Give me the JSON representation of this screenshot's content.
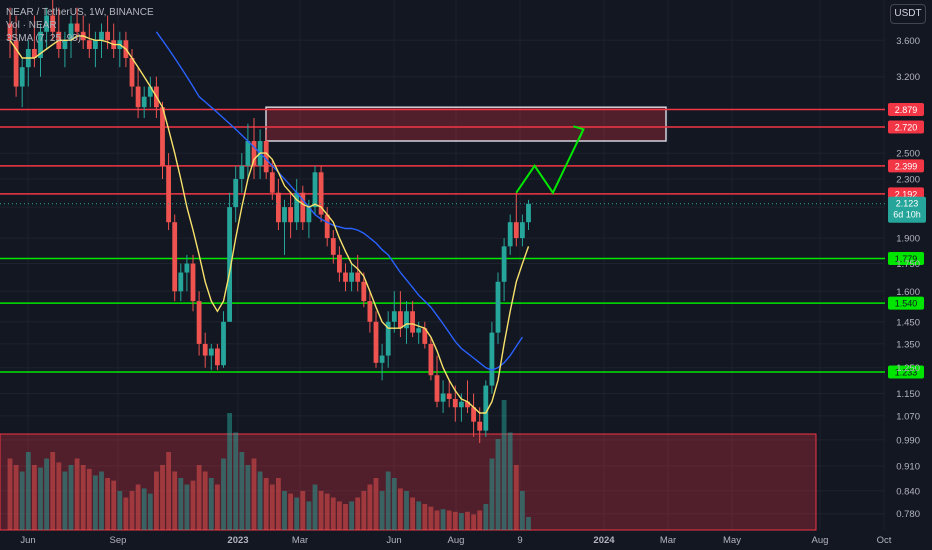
{
  "legend": {
    "symbol": "NEAR / TetherUS, 1W, BINANCE",
    "volume": "Vol · NEAR",
    "ma": "3SMA (7, 25, 99)"
  },
  "currency": "USDT",
  "countdown": "6d 10h",
  "colors": {
    "background": "#131722",
    "up": "#26a69a",
    "down": "#ef5350",
    "ma_fast": "#f7e26b",
    "ma_slow": "#2962ff",
    "support": "#00e600",
    "resistance": "#f23645",
    "projection": "#00e600"
  },
  "chart_data": {
    "type": "candlestick",
    "timeframe": "1W",
    "y_scale": "log",
    "ylim": [
      0.74,
      4.1
    ],
    "y_ticks": [
      "3.600",
      "3.200",
      "2.500",
      "2.300",
      "2.100",
      "1.900",
      "1.750",
      "1.600",
      "1.450",
      "1.350",
      "1.250",
      "1.150",
      "1.070",
      "0.990",
      "0.910",
      "0.840",
      "0.780"
    ],
    "x_ticks": [
      "Jun",
      "Sep",
      "2023",
      "Mar",
      "Jun",
      "Aug",
      "9",
      "2024",
      "Mar",
      "May",
      "Aug",
      "Oct"
    ],
    "last_price": 2.123,
    "resistance_levels": [
      {
        "value": 2.879,
        "label": "2.879"
      },
      {
        "value": 2.72,
        "label": "2.720"
      },
      {
        "value": 2.399,
        "label": "2.399"
      },
      {
        "value": 2.192,
        "label": "2.192"
      }
    ],
    "support_levels": [
      {
        "value": 1.779,
        "label": "1.779"
      },
      {
        "value": 1.54,
        "label": "1.540"
      },
      {
        "value": 1.233,
        "label": "1.233"
      }
    ],
    "supply_zone": {
      "from_bar": 38,
      "to_bar": 98,
      "low": 2.6,
      "high": 2.9
    },
    "projection_path": [
      {
        "bar": 83,
        "price": 2.2
      },
      {
        "bar": 86,
        "price": 2.4
      },
      {
        "bar": 89,
        "price": 2.2
      },
      {
        "bar": 94,
        "price": 2.7
      }
    ],
    "candles": [
      [
        3.8,
        4.0,
        3.4,
        3.6
      ],
      [
        3.6,
        3.9,
        3.0,
        3.1
      ],
      [
        3.1,
        3.4,
        2.9,
        3.3
      ],
      [
        3.3,
        3.6,
        3.1,
        3.5
      ],
      [
        3.5,
        3.9,
        3.3,
        3.4
      ],
      [
        3.4,
        3.8,
        3.2,
        3.7
      ],
      [
        3.7,
        4.0,
        3.5,
        3.9
      ],
      [
        3.9,
        4.1,
        3.6,
        3.7
      ],
      [
        3.7,
        4.0,
        3.4,
        3.5
      ],
      [
        3.5,
        3.7,
        3.3,
        3.6
      ],
      [
        3.6,
        3.9,
        3.4,
        3.8
      ],
      [
        3.8,
        4.0,
        3.6,
        3.7
      ],
      [
        3.7,
        3.9,
        3.5,
        3.6
      ],
      [
        3.6,
        3.8,
        3.4,
        3.5
      ],
      [
        3.5,
        3.7,
        3.3,
        3.6
      ],
      [
        3.6,
        3.8,
        3.4,
        3.7
      ],
      [
        3.7,
        3.9,
        3.5,
        3.6
      ],
      [
        3.6,
        3.8,
        3.4,
        3.5
      ],
      [
        3.5,
        3.7,
        3.3,
        3.6
      ],
      [
        3.6,
        3.7,
        3.3,
        3.4
      ],
      [
        3.4,
        3.5,
        3.0,
        3.1
      ],
      [
        3.1,
        3.3,
        2.8,
        2.9
      ],
      [
        2.9,
        3.1,
        2.8,
        3.0
      ],
      [
        3.0,
        3.2,
        2.9,
        3.1
      ],
      [
        3.1,
        3.2,
        2.8,
        2.9
      ],
      [
        2.9,
        2.95,
        2.3,
        2.4
      ],
      [
        2.4,
        2.5,
        1.95,
        2.0
      ],
      [
        2.0,
        2.05,
        1.55,
        1.6
      ],
      [
        1.6,
        1.75,
        1.55,
        1.7
      ],
      [
        1.7,
        1.8,
        1.6,
        1.75
      ],
      [
        1.75,
        1.8,
        1.5,
        1.55
      ],
      [
        1.55,
        1.6,
        1.3,
        1.35
      ],
      [
        1.35,
        1.4,
        1.25,
        1.3
      ],
      [
        1.3,
        1.35,
        1.24,
        1.33
      ],
      [
        1.33,
        1.35,
        1.24,
        1.26
      ],
      [
        1.26,
        1.5,
        1.25,
        1.45
      ],
      [
        1.45,
        2.2,
        1.45,
        2.1
      ],
      [
        2.1,
        2.4,
        2.0,
        2.3
      ],
      [
        2.3,
        2.5,
        2.2,
        2.4
      ],
      [
        2.4,
        2.75,
        2.3,
        2.6
      ],
      [
        2.6,
        2.8,
        2.3,
        2.4
      ],
      [
        2.4,
        2.7,
        2.3,
        2.6
      ],
      [
        2.6,
        2.7,
        2.3,
        2.35
      ],
      [
        2.35,
        2.45,
        2.15,
        2.2
      ],
      [
        2.2,
        2.3,
        1.95,
        2.0
      ],
      [
        2.0,
        2.15,
        1.8,
        2.1
      ],
      [
        2.1,
        2.2,
        1.9,
        2.0
      ],
      [
        2.0,
        2.3,
        1.95,
        2.2
      ],
      [
        2.2,
        2.25,
        1.95,
        2.0
      ],
      [
        2.0,
        2.15,
        1.9,
        2.1
      ],
      [
        2.1,
        2.4,
        2.05,
        2.35
      ],
      [
        2.35,
        2.4,
        2.0,
        2.05
      ],
      [
        2.05,
        2.1,
        1.85,
        1.9
      ],
      [
        1.9,
        1.95,
        1.75,
        1.8
      ],
      [
        1.8,
        1.85,
        1.65,
        1.7
      ],
      [
        1.7,
        1.75,
        1.6,
        1.65
      ],
      [
        1.65,
        1.75,
        1.6,
        1.7
      ],
      [
        1.7,
        1.8,
        1.6,
        1.65
      ],
      [
        1.65,
        1.7,
        1.52,
        1.55
      ],
      [
        1.55,
        1.6,
        1.4,
        1.45
      ],
      [
        1.45,
        1.5,
        1.25,
        1.27
      ],
      [
        1.27,
        1.35,
        1.2,
        1.3
      ],
      [
        1.3,
        1.5,
        1.25,
        1.45
      ],
      [
        1.45,
        1.6,
        1.4,
        1.5
      ],
      [
        1.5,
        1.6,
        1.38,
        1.42
      ],
      [
        1.42,
        1.55,
        1.35,
        1.5
      ],
      [
        1.5,
        1.55,
        1.38,
        1.4
      ],
      [
        1.4,
        1.45,
        1.35,
        1.42
      ],
      [
        1.42,
        1.45,
        1.33,
        1.35
      ],
      [
        1.35,
        1.38,
        1.2,
        1.22
      ],
      [
        1.22,
        1.3,
        1.1,
        1.12
      ],
      [
        1.12,
        1.2,
        1.08,
        1.15
      ],
      [
        1.15,
        1.2,
        1.1,
        1.13
      ],
      [
        1.13,
        1.18,
        1.05,
        1.1
      ],
      [
        1.1,
        1.15,
        1.05,
        1.12
      ],
      [
        1.12,
        1.2,
        1.08,
        1.1
      ],
      [
        1.1,
        1.15,
        1.0,
        1.05
      ],
      [
        1.05,
        1.1,
        0.98,
        1.02
      ],
      [
        1.02,
        1.2,
        1.0,
        1.18
      ],
      [
        1.18,
        1.45,
        1.15,
        1.4
      ],
      [
        1.4,
        1.7,
        1.35,
        1.65
      ],
      [
        1.65,
        1.9,
        1.55,
        1.85
      ],
      [
        1.85,
        2.05,
        1.8,
        2.0
      ],
      [
        2.0,
        2.2,
        1.85,
        1.9
      ],
      [
        1.9,
        2.05,
        1.85,
        2.0
      ],
      [
        2.0,
        2.15,
        1.95,
        2.123
      ]
    ],
    "volume": [
      0.55,
      0.5,
      0.45,
      0.6,
      0.5,
      0.48,
      0.55,
      0.6,
      0.52,
      0.45,
      0.5,
      0.55,
      0.5,
      0.47,
      0.42,
      0.45,
      0.4,
      0.38,
      0.3,
      0.25,
      0.3,
      0.35,
      0.32,
      0.28,
      0.45,
      0.5,
      0.6,
      0.45,
      0.4,
      0.35,
      0.38,
      0.5,
      0.45,
      0.4,
      0.35,
      0.55,
      0.9,
      0.75,
      0.6,
      0.5,
      0.55,
      0.45,
      0.4,
      0.35,
      0.4,
      0.3,
      0.28,
      0.25,
      0.3,
      0.22,
      0.35,
      0.3,
      0.28,
      0.25,
      0.22,
      0.2,
      0.22,
      0.25,
      0.3,
      0.35,
      0.4,
      0.3,
      0.45,
      0.4,
      0.32,
      0.3,
      0.25,
      0.22,
      0.2,
      0.18,
      0.15,
      0.16,
      0.15,
      0.14,
      0.13,
      0.14,
      0.12,
      0.15,
      0.2,
      0.55,
      0.7,
      1.0,
      0.75,
      0.5,
      0.3,
      0.1
    ],
    "ma_fast": [
      3.6,
      3.5,
      3.4,
      3.4,
      3.4,
      3.45,
      3.5,
      3.55,
      3.6,
      3.6,
      3.6,
      3.65,
      3.65,
      3.62,
      3.6,
      3.6,
      3.58,
      3.55,
      3.55,
      3.5,
      3.4,
      3.3,
      3.2,
      3.1,
      3.0,
      2.9,
      2.7,
      2.5,
      2.3,
      2.1,
      1.95,
      1.8,
      1.65,
      1.55,
      1.5,
      1.55,
      1.7,
      1.9,
      2.1,
      2.3,
      2.45,
      2.5,
      2.5,
      2.45,
      2.35,
      2.25,
      2.2,
      2.15,
      2.12,
      2.1,
      2.12,
      2.1,
      2.05,
      2.0,
      1.9,
      1.82,
      1.75,
      1.72,
      1.68,
      1.6,
      1.52,
      1.45,
      1.42,
      1.42,
      1.42,
      1.44,
      1.44,
      1.43,
      1.42,
      1.38,
      1.32,
      1.25,
      1.2,
      1.16,
      1.13,
      1.12,
      1.1,
      1.08,
      1.08,
      1.12,
      1.2,
      1.35,
      1.5,
      1.65,
      1.75,
      1.85
    ],
    "ma_slow": [
      null,
      null,
      null,
      null,
      null,
      null,
      null,
      null,
      null,
      null,
      null,
      null,
      null,
      null,
      null,
      null,
      null,
      null,
      null,
      null,
      null,
      null,
      null,
      null,
      3.7,
      3.6,
      3.5,
      3.4,
      3.3,
      3.2,
      3.1,
      3.0,
      2.95,
      2.9,
      2.85,
      2.8,
      2.75,
      2.7,
      2.65,
      2.6,
      2.55,
      2.5,
      2.45,
      2.4,
      2.35,
      2.3,
      2.25,
      2.2,
      2.15,
      2.1,
      2.05,
      2.02,
      2.0,
      1.98,
      1.97,
      1.96,
      1.96,
      1.95,
      1.93,
      1.9,
      1.87,
      1.83,
      1.8,
      1.75,
      1.7,
      1.66,
      1.62,
      1.58,
      1.55,
      1.52,
      1.48,
      1.44,
      1.4,
      1.36,
      1.33,
      1.31,
      1.29,
      1.27,
      1.25,
      1.24,
      1.25,
      1.27,
      1.3,
      1.34,
      1.38
    ]
  }
}
